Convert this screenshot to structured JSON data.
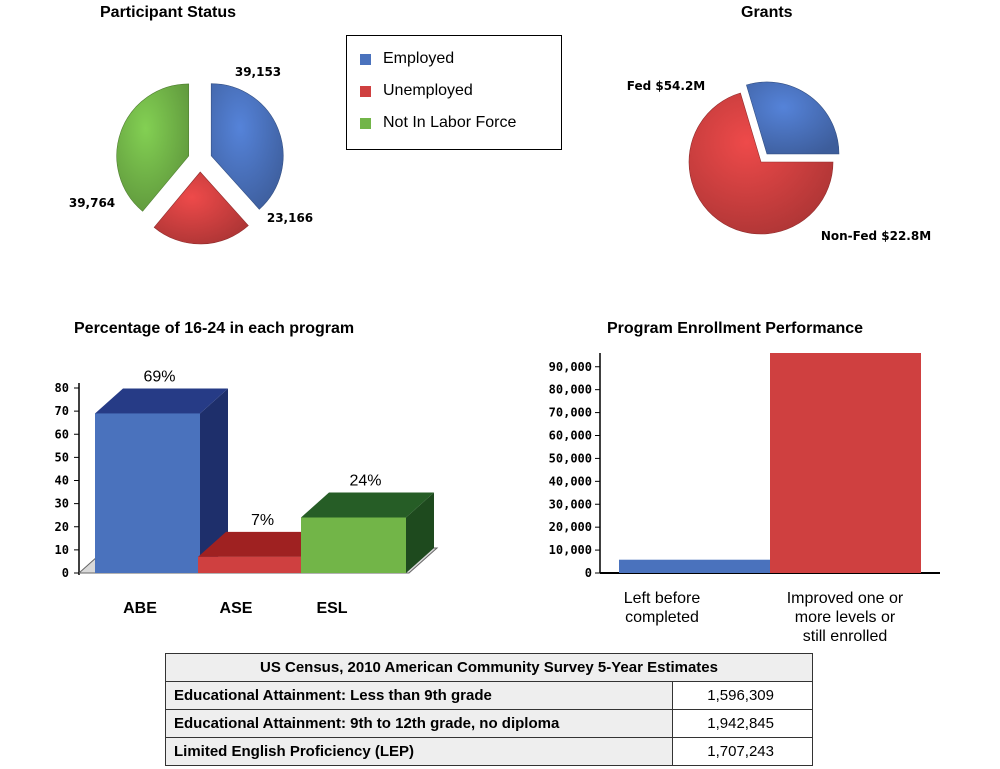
{
  "charts": {
    "participant_status": {
      "title": "Participant Status"
    },
    "grants": {
      "title": "Grants"
    },
    "youth_pct": {
      "title": "Percentage of 16-24 in each program"
    },
    "enrollment": {
      "title": "Program Enrollment Performance"
    }
  },
  "legend": {
    "items": [
      "Employed",
      "Unemployed",
      "Not In Labor Force"
    ]
  },
  "colors": {
    "blue": "#4a72bd",
    "red": "#cf4040",
    "green": "#72b548",
    "dark_blue": "#1e2f6b",
    "dark_red": "#7f1a1a",
    "dark_green": "#1e4a1e"
  },
  "chart_data": [
    {
      "type": "pie",
      "title": "Participant Status",
      "labels": [
        "Employed",
        "Unemployed",
        "Not In Labor Force"
      ],
      "values": [
        39153,
        23166,
        39764
      ],
      "value_labels": [
        "39,153",
        "23,166",
        "39,764"
      ],
      "legend": "top-right"
    },
    {
      "type": "pie",
      "title": "Grants",
      "labels": [
        "Fed $54.2M",
        "Non-Fed $22.8M"
      ],
      "values": [
        54.2,
        22.8
      ]
    },
    {
      "type": "bar",
      "title": "Percentage of 16-24 in each program",
      "categories": [
        "ABE",
        "ASE",
        "ESL"
      ],
      "values": [
        69,
        7,
        24
      ],
      "value_labels": [
        "69%",
        "7%",
        "24%"
      ],
      "ylim": [
        0,
        80
      ],
      "yticks": [
        "0",
        "10",
        "20",
        "30",
        "40",
        "50",
        "60",
        "70",
        "80"
      ]
    },
    {
      "type": "bar",
      "title": "Program Enrollment Performance",
      "categories": [
        "Left before completed",
        "Improved one or more levels or still enrolled"
      ],
      "category_lines": [
        [
          "Left before",
          "completed"
        ],
        [
          "Improved one or",
          "more levels or",
          "still enrolled"
        ]
      ],
      "values": [
        5800,
        96000
      ],
      "ylim": [
        0,
        96000
      ],
      "yticks": [
        "0",
        "10,000",
        "20,000",
        "30,000",
        "40,000",
        "50,000",
        "60,000",
        "70,000",
        "80,000",
        "90,000"
      ]
    }
  ],
  "census": {
    "title": "US Census, 2010 American Community Survey 5-Year Estimates",
    "rows": [
      {
        "label": "Educational Attainment: Less than 9th grade",
        "value": "1,596,309"
      },
      {
        "label": "Educational Attainment: 9th to 12th grade, no diploma",
        "value": "1,942,845"
      },
      {
        "label": "Limited English Proficiency (LEP)",
        "value": "1,707,243"
      }
    ]
  }
}
